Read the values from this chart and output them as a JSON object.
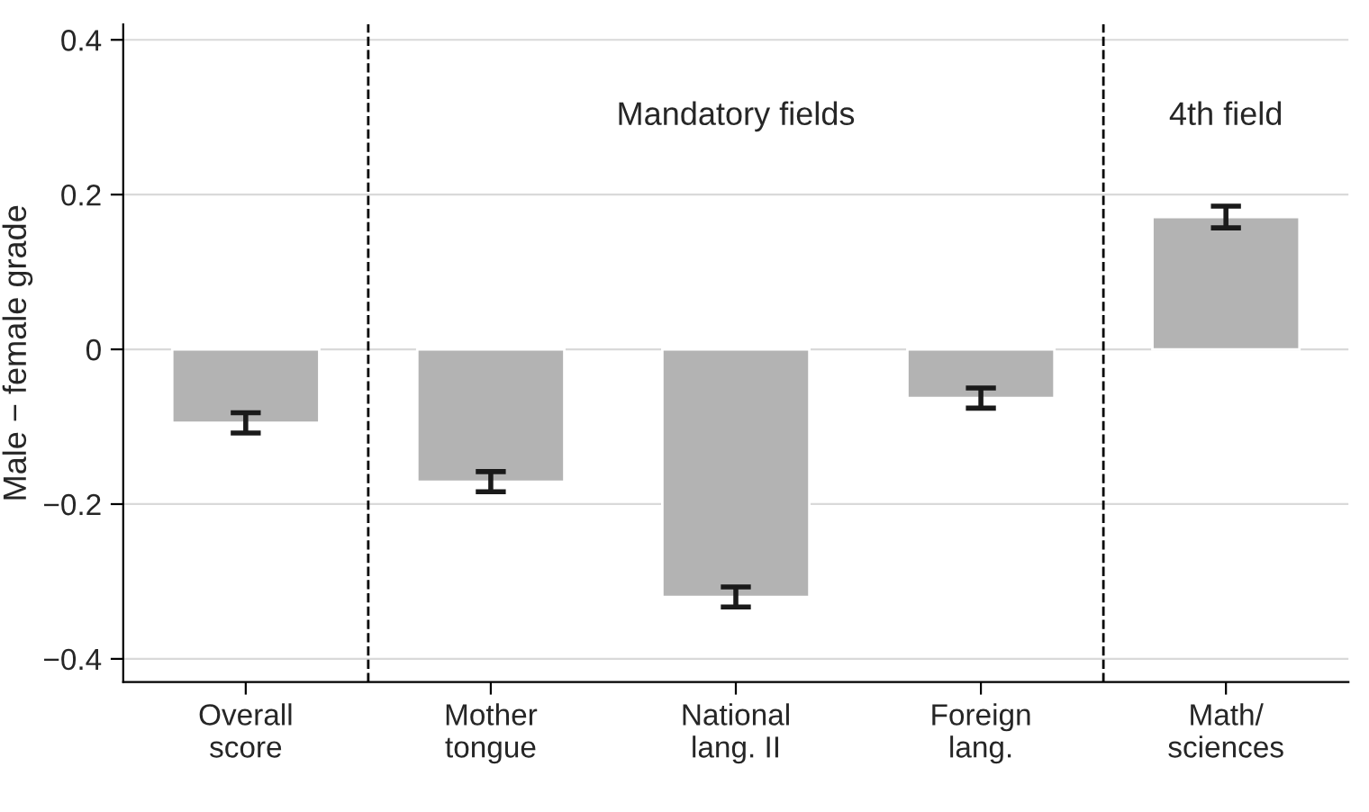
{
  "chart_data": {
    "type": "bar",
    "ylabel": "Male − female grade",
    "categories": [
      "Overall\nscore",
      "Mother\ntongue",
      "National\nlang. II",
      "Foreign\nlang.",
      "Math/\nsciences"
    ],
    "values": [
      -0.095,
      -0.171,
      -0.32,
      -0.063,
      0.171
    ],
    "errors": [
      0.013,
      0.013,
      0.013,
      0.013,
      0.014
    ],
    "color": "#b3b3b3",
    "ylim": [
      -0.43,
      0.42
    ],
    "yticks": [
      {
        "value": -0.4,
        "label": "−0.4"
      },
      {
        "value": -0.2,
        "label": "−0.2"
      },
      0,
      0.2,
      0.4
    ],
    "grid": "y",
    "annotations": [
      "Mandatory fields",
      "4th field"
    ]
  }
}
